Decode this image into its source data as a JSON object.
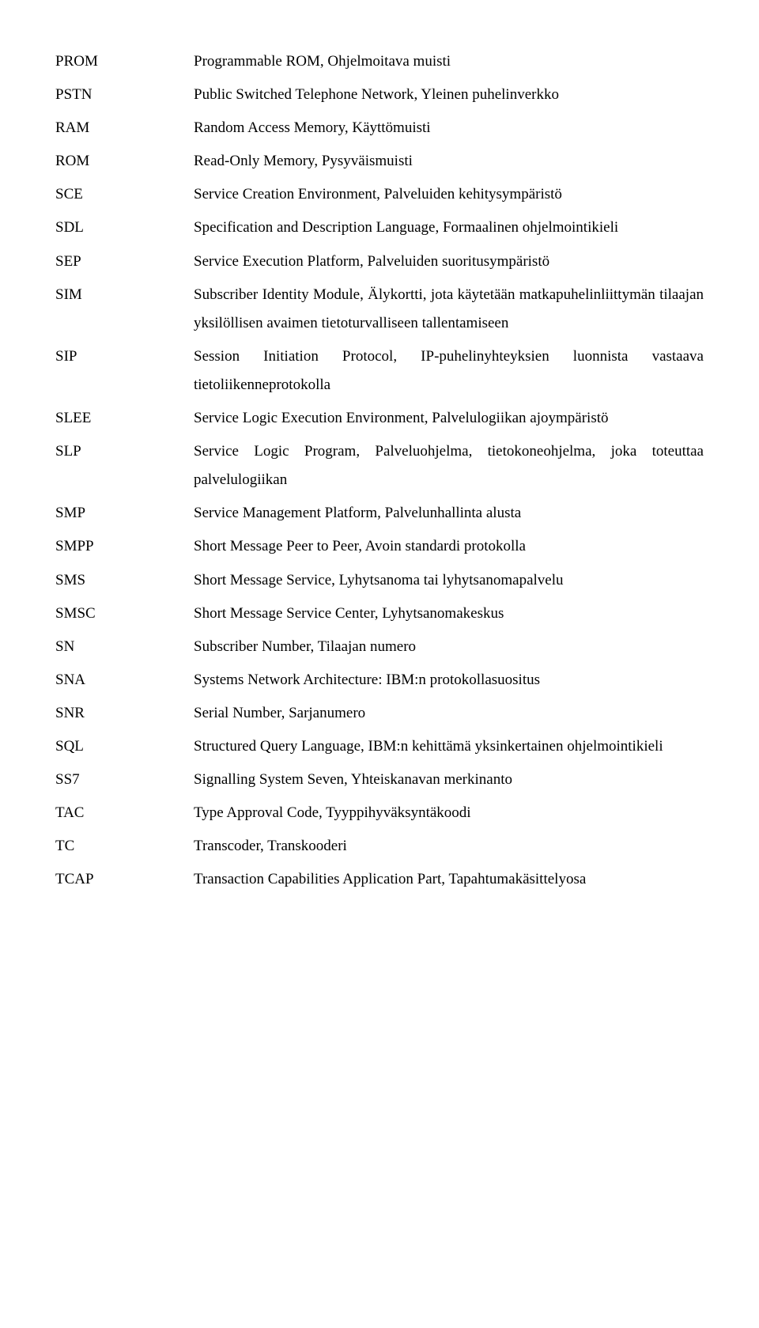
{
  "entries": [
    {
      "term": "PROM",
      "def": "Programmable ROM, Ohjelmoitava muisti"
    },
    {
      "term": "PSTN",
      "def": "Public Switched Telephone Network, Yleinen puhelinverkko"
    },
    {
      "term": "RAM",
      "def": "Random Access Memory, Käyttömuisti"
    },
    {
      "term": "ROM",
      "def": "Read-Only Memory, Pysyväismuisti"
    },
    {
      "term": "SCE",
      "def": "Service Creation Environment, Palveluiden kehitysympäristö"
    },
    {
      "term": "SDL",
      "def": "Specification and Description Language, Formaalinen ohjelmointikieli"
    },
    {
      "term": "SEP",
      "def": "Service Execution Platform, Palveluiden suoritusympäristö"
    },
    {
      "term": "SIM",
      "def": "Subscriber Identity Module, Älykortti, jota käytetään matkapuhelinliittymän tilaajan yksilöllisen avaimen tietoturvalliseen tallentamiseen"
    },
    {
      "term": "SIP",
      "def": "Session Initiation Protocol, IP-puhelinyhteyksien luonnista vastaava tietoliikenneprotokolla"
    },
    {
      "term": "SLEE",
      "def": "Service Logic Execution Environment, Palvelulogiikan ajoympäristö"
    },
    {
      "term": "SLP",
      "def": "Service Logic Program, Palveluohjelma, tietokoneohjelma, joka toteuttaa palvelulogiikan"
    },
    {
      "term": "SMP",
      "def": "Service Management Platform, Palvelunhallinta alusta"
    },
    {
      "term": "SMPP",
      "def": "Short Message Peer to Peer, Avoin standardi protokolla"
    },
    {
      "term": "SMS",
      "def": "Short Message Service, Lyhytsanoma tai lyhytsanomapalvelu"
    },
    {
      "term": "SMSC",
      "def": "Short Message Service Center, Lyhytsanomakeskus"
    },
    {
      "term": "SN",
      "def": "Subscriber Number, Tilaajan numero"
    },
    {
      "term": "SNA",
      "def": "Systems Network Architecture: IBM:n protokollasuositus"
    },
    {
      "term": "SNR",
      "def": "Serial Number, Sarjanumero"
    },
    {
      "term": "SQL",
      "def": "Structured Query Language, IBM:n kehittämä yksinkertainen ohjelmointikieli"
    },
    {
      "term": "SS7",
      "def": "Signalling System Seven, Yhteiskanavan merkinanto"
    },
    {
      "term": "TAC",
      "def": "Type Approval Code, Tyyppihyväksyntäkoodi"
    },
    {
      "term": "TC",
      "def": "Transcoder, Transkooderi"
    },
    {
      "term": "TCAP",
      "def": "Transaction Capabilities Application Part, Tapahtumakäsittelyosa"
    }
  ]
}
